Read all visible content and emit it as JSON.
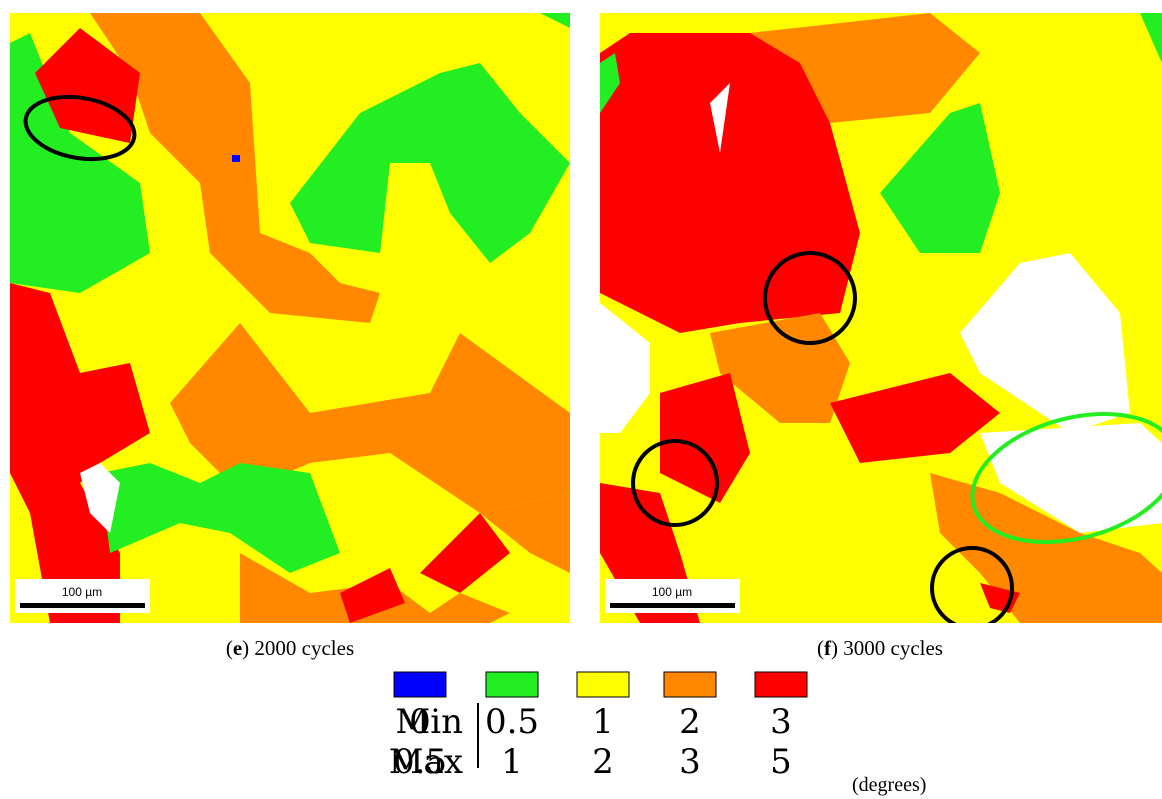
{
  "panels": [
    {
      "caption": {
        "open": "(",
        "label": "e",
        "text": ") 2000 cycles"
      },
      "scale_bar": "100 µm"
    },
    {
      "caption": {
        "open": "(",
        "label": "f",
        "text": ") 3000 cycles"
      },
      "scale_bar": "100 µm"
    }
  ],
  "legend": {
    "colors": [
      "#0000ff",
      "#22ee22",
      "#ffff00",
      "#ff8800",
      "#ff0000"
    ],
    "min_label": "Min",
    "max_label": "Max",
    "min": [
      "0",
      "0.5",
      "1",
      "2",
      "3"
    ],
    "max": [
      "0.5",
      "1",
      "2",
      "3",
      "5"
    ],
    "unit": "(degrees)"
  }
}
